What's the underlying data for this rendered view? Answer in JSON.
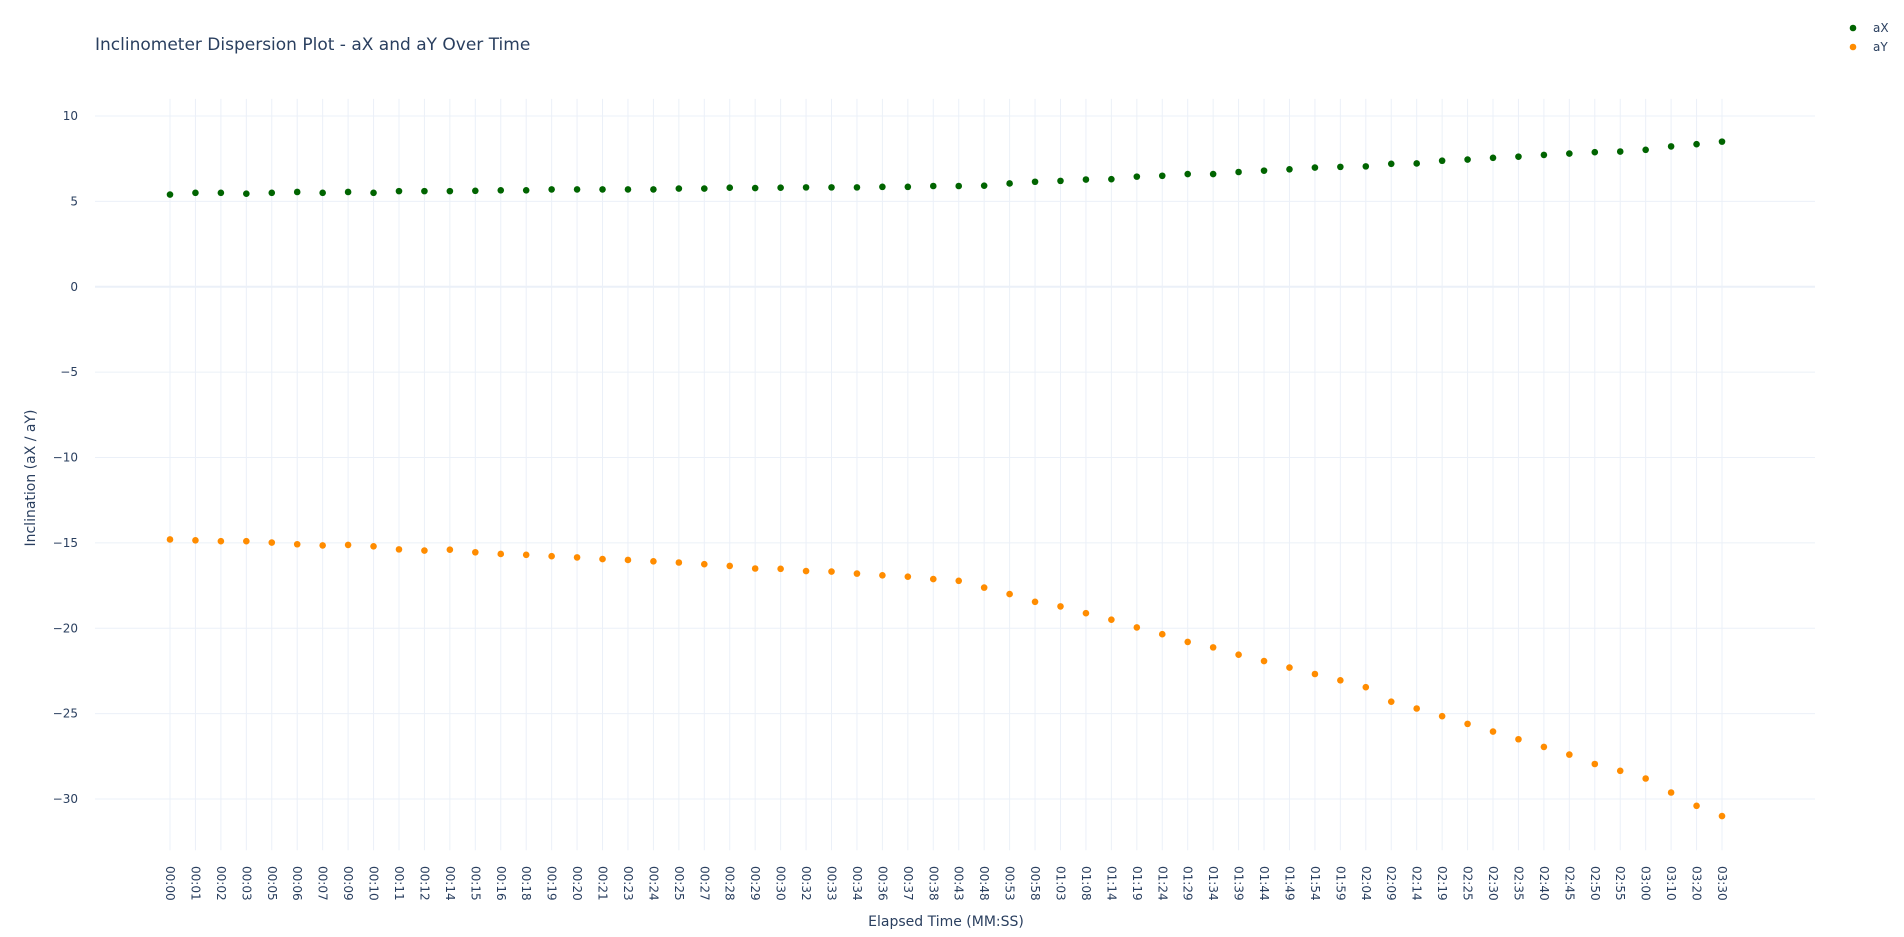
{
  "colors": {
    "ax": "#006400",
    "ay": "#ff8c00",
    "text": "#2a3f5f",
    "grid": "#ebf0f8"
  },
  "chart_data": {
    "type": "scatter",
    "title": "Inclinometer Dispersion Plot - aX and aY Over Time",
    "xlabel": "Elapsed Time (MM:SS)",
    "ylabel": "Inclination (aX / aY)",
    "ylim": [
      -33,
      11
    ],
    "yticks": [
      10,
      5,
      0,
      -5,
      -10,
      -15,
      -20,
      -25,
      -30
    ],
    "ytick_labels": [
      "10",
      "5",
      "0",
      "−5",
      "−10",
      "−15",
      "−20",
      "−25",
      "−30"
    ],
    "grid": true,
    "legend_position": "top-right",
    "x": [
      "00:00",
      "00:01",
      "00:02",
      "00:03",
      "00:05",
      "00:06",
      "00:07",
      "00:09",
      "00:10",
      "00:11",
      "00:12",
      "00:14",
      "00:15",
      "00:16",
      "00:18",
      "00:19",
      "00:20",
      "00:21",
      "00:23",
      "00:24",
      "00:25",
      "00:27",
      "00:28",
      "00:29",
      "00:30",
      "00:32",
      "00:33",
      "00:34",
      "00:36",
      "00:37",
      "00:38",
      "00:43",
      "00:48",
      "00:53",
      "00:58",
      "01:03",
      "01:08",
      "01:14",
      "01:19",
      "01:24",
      "01:29",
      "01:34",
      "01:39",
      "01:44",
      "01:49",
      "01:54",
      "01:59",
      "02:04",
      "02:09",
      "02:14",
      "02:19",
      "02:25",
      "02:30",
      "02:35",
      "02:40",
      "02:45",
      "02:50",
      "02:55",
      "03:00",
      "03:10",
      "03:20",
      "03:30"
    ],
    "series": [
      {
        "name": "aX",
        "values": [
          5.4,
          5.5,
          5.5,
          5.45,
          5.5,
          5.55,
          5.5,
          5.55,
          5.5,
          5.6,
          5.6,
          5.6,
          5.62,
          5.65,
          5.65,
          5.7,
          5.7,
          5.7,
          5.7,
          5.7,
          5.75,
          5.75,
          5.8,
          5.78,
          5.8,
          5.82,
          5.82,
          5.82,
          5.85,
          5.85,
          5.9,
          5.9,
          5.92,
          6.05,
          6.15,
          6.2,
          6.28,
          6.3,
          6.45,
          6.5,
          6.6,
          6.6,
          6.72,
          6.8,
          6.88,
          6.98,
          7.02,
          7.05,
          7.2,
          7.22,
          7.38,
          7.45,
          7.55,
          7.62,
          7.72,
          7.8,
          7.88,
          7.92,
          8.02,
          8.22,
          8.35,
          8.5
        ]
      },
      {
        "name": "aY",
        "values": [
          -14.8,
          -14.85,
          -14.9,
          -14.9,
          -14.98,
          -15.08,
          -15.15,
          -15.12,
          -15.2,
          -15.38,
          -15.45,
          -15.4,
          -15.55,
          -15.65,
          -15.7,
          -15.78,
          -15.85,
          -15.95,
          -16.0,
          -16.08,
          -16.15,
          -16.25,
          -16.35,
          -16.5,
          -16.52,
          -16.65,
          -16.68,
          -16.8,
          -16.9,
          -16.98,
          -17.12,
          -17.22,
          -17.62,
          -18.0,
          -18.45,
          -18.72,
          -19.12,
          -19.5,
          -19.95,
          -20.35,
          -20.8,
          -21.12,
          -21.55,
          -21.92,
          -22.3,
          -22.68,
          -23.05,
          -23.45,
          -24.3,
          -24.7,
          -25.15,
          -25.6,
          -26.05,
          -26.5,
          -26.95,
          -27.4,
          -27.95,
          -28.35,
          -28.8,
          -29.62,
          -30.4,
          -31.0
        ]
      }
    ]
  }
}
